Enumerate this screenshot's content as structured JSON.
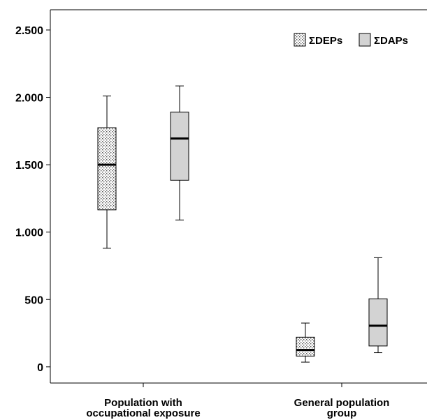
{
  "chart_data": {
    "type": "boxplot",
    "title": "",
    "xlabel": "",
    "ylabel": "",
    "ylim": [
      -120,
      2650
    ],
    "yticks": [
      0,
      500,
      1000,
      1500,
      2000,
      2500
    ],
    "ytick_labels": [
      "0",
      "500",
      "1.000",
      "1.500",
      "2.000",
      "2.500"
    ],
    "legend_position": "top-right",
    "categories": [
      [
        "Population with",
        "occupational exposure"
      ],
      [
        "General population",
        "group"
      ]
    ],
    "series": [
      {
        "name": "ΣDEPs",
        "fill": "#ffffff",
        "pattern": "dotted",
        "boxes": [
          {
            "min": 880,
            "q1": 1165,
            "median": 1500,
            "q3": 1775,
            "max": 2010
          },
          {
            "min": 35,
            "q1": 80,
            "median": 125,
            "q3": 220,
            "max": 325
          }
        ]
      },
      {
        "name": "ΣDAPs",
        "fill": "#d3d3d3",
        "pattern": "solid",
        "boxes": [
          {
            "min": 1090,
            "q1": 1385,
            "median": 1695,
            "q3": 1890,
            "max": 2085
          },
          {
            "min": 105,
            "q1": 155,
            "median": 305,
            "q3": 505,
            "max": 810
          }
        ]
      }
    ]
  }
}
